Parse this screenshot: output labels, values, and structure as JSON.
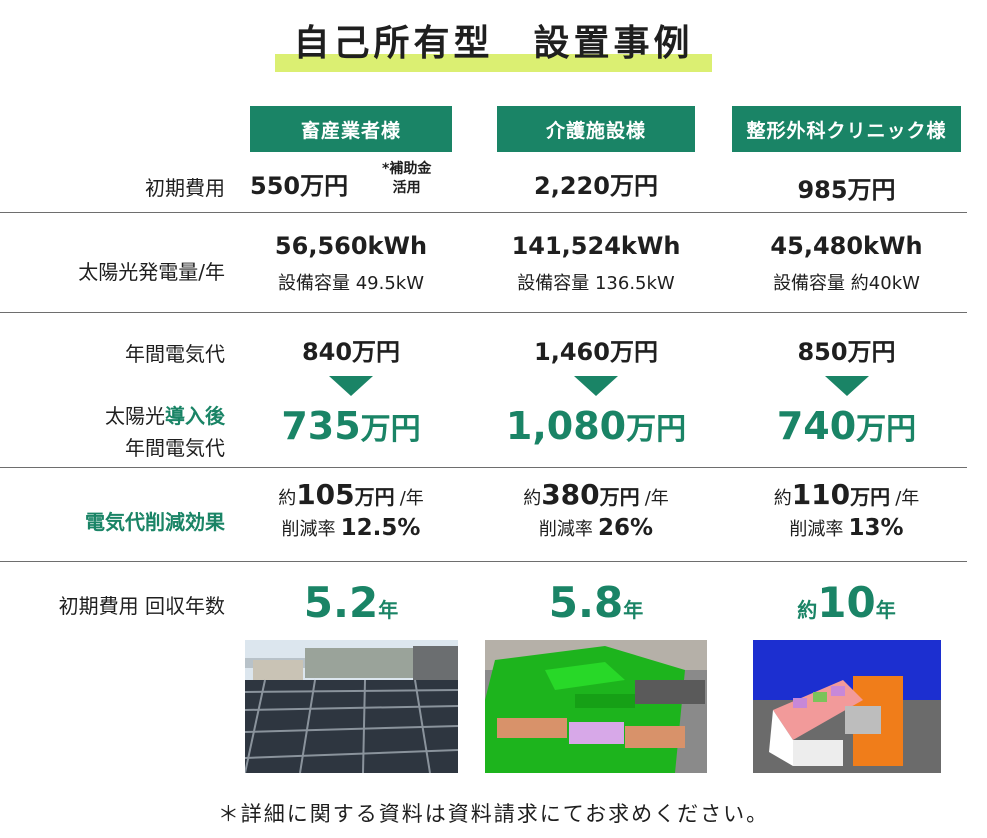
{
  "title": "自己所有型　設置事例",
  "columns": [
    {
      "name": "畜産業者様"
    },
    {
      "name": "介護施設様"
    },
    {
      "name": "整形外科クリニック様"
    }
  ],
  "rows": {
    "initial_cost": {
      "label": "初期費用",
      "values": [
        "550万円",
        "2,220万円",
        "985万円"
      ],
      "subsidy_note": [
        "*補助金",
        "活用"
      ]
    },
    "generation": {
      "label": "太陽光発電量/年",
      "values": [
        "56,560kWh",
        "141,524kWh",
        "45,480kWh"
      ],
      "capacity": [
        "設備容量 49.5kW",
        "設備容量 136.5kW",
        "設備容量 約40kW"
      ]
    },
    "electricity_before": {
      "label": "年間電気代",
      "values": [
        "840万円",
        "1,460万円",
        "850万円"
      ]
    },
    "electricity_after": {
      "label_prefix": "太陽光",
      "label_highlight": "導入後",
      "label_line2": "年間電気代",
      "values": [
        {
          "num": "735",
          "unit": "万円"
        },
        {
          "num": "1,080",
          "unit": "万円"
        },
        {
          "num": "740",
          "unit": "万円"
        }
      ]
    },
    "savings": {
      "label": "電気代削減効果",
      "values": [
        {
          "pre": "約",
          "num": "105",
          "unit": "万円",
          "per": "/年",
          "rate_label": "削減率",
          "rate": "12.5%"
        },
        {
          "pre": "約",
          "num": "380",
          "unit": "万円",
          "per": "/年",
          "rate_label": "削減率",
          "rate": "26%"
        },
        {
          "pre": "約",
          "num": "110",
          "unit": "万円",
          "per": "/年",
          "rate_label": "削減率",
          "rate": "13%"
        }
      ]
    },
    "payback": {
      "label": "初期費用 回収年数",
      "values": [
        {
          "pre": "",
          "num": "5.2",
          "unit": "年"
        },
        {
          "pre": "",
          "num": "5.8",
          "unit": "年"
        },
        {
          "pre": "約",
          "num": "10",
          "unit": "年"
        }
      ]
    }
  },
  "footnote": "＊詳細に関する資料は資料請求にてお求めください。",
  "colors": {
    "accent": "#1a8466",
    "highlight": "#dbef72"
  }
}
